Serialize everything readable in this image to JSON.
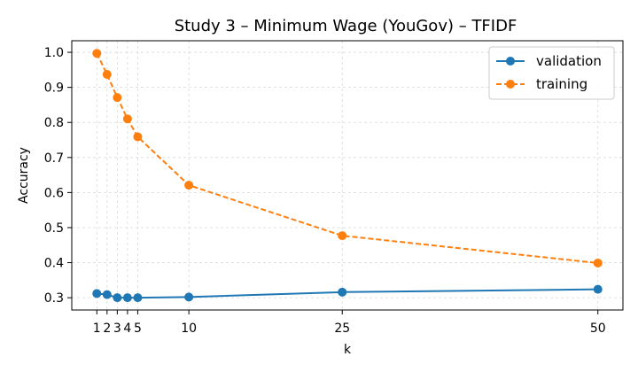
{
  "chart_data": {
    "type": "line",
    "title": "Study 3 – Minimum Wage (YouGov) – TFIDF",
    "xlabel": "k",
    "ylabel": "Accuracy",
    "x": [
      1,
      2,
      3,
      4,
      5,
      10,
      25,
      50
    ],
    "x_ticks": [
      1,
      2,
      3,
      4,
      5,
      10,
      25,
      50
    ],
    "y_ticks": [
      0.3,
      0.4,
      0.5,
      0.6,
      0.7,
      0.8,
      0.9,
      1.0
    ],
    "y_tick_labels": [
      "0.3",
      "0.4",
      "0.5",
      "0.6",
      "0.7",
      "0.8",
      "0.9",
      "1.0"
    ],
    "xlim": [
      -1.45,
      52.45
    ],
    "ylim": [
      0.265,
      1.033
    ],
    "grid": true,
    "legend_position": "top-right",
    "series": [
      {
        "name": "validation",
        "color": "#1f77b4",
        "line_style": "solid",
        "marker": "circle",
        "values": [
          0.312,
          0.309,
          0.3,
          0.3,
          0.3,
          0.302,
          0.316,
          0.324
        ]
      },
      {
        "name": "training",
        "color": "#ff7f0e",
        "line_style": "dashed",
        "marker": "circle",
        "values": [
          0.997,
          0.937,
          0.871,
          0.81,
          0.759,
          0.621,
          0.477,
          0.399
        ]
      }
    ]
  }
}
